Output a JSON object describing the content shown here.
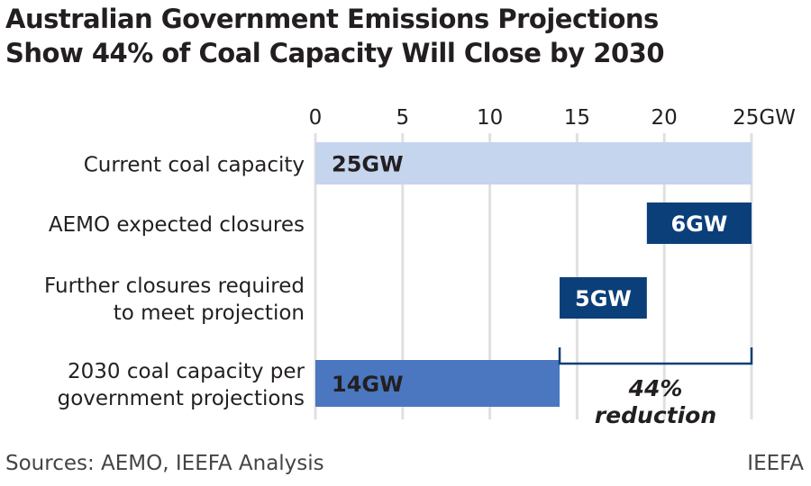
{
  "title_lines": [
    "Australian Government Emissions Projections",
    "Show 44% of Coal Capacity Will Close by 2030"
  ],
  "source": "Sources:  AEMO, IEEFA Analysis",
  "brand": "IEEFA",
  "chart_data": {
    "type": "bar",
    "orientation": "horizontal",
    "subtype": "waterfall",
    "xlim": [
      0,
      25
    ],
    "ticks": [
      0,
      5,
      10,
      15,
      20,
      25
    ],
    "tick_labels": [
      "0",
      "5",
      "10",
      "15",
      "20",
      "25GW"
    ],
    "grid": true,
    "categories": [
      [
        "Current coal capacity"
      ],
      [
        "AEMO expected closures"
      ],
      [
        "Further closures required",
        "to meet projection"
      ],
      [
        "2030 coal capacity per",
        "government projections"
      ]
    ],
    "bars": [
      {
        "start": 0,
        "end": 25,
        "label": "25GW",
        "color": "#c5d5ee",
        "label_color": "#231f20"
      },
      {
        "start": 19,
        "end": 25,
        "label": "6GW",
        "color": "#0b3f7a",
        "label_color": "#ffffff"
      },
      {
        "start": 14,
        "end": 19,
        "label": "5GW",
        "color": "#0b3f7a",
        "label_color": "#ffffff"
      },
      {
        "start": 0,
        "end": 14,
        "label": "14GW",
        "color": "#4a77bf",
        "label_color": "#231f20"
      }
    ],
    "annotation": {
      "start": 14,
      "end": 25,
      "lines": [
        "44%",
        "reduction"
      ],
      "color": "#0b3f7a"
    }
  }
}
